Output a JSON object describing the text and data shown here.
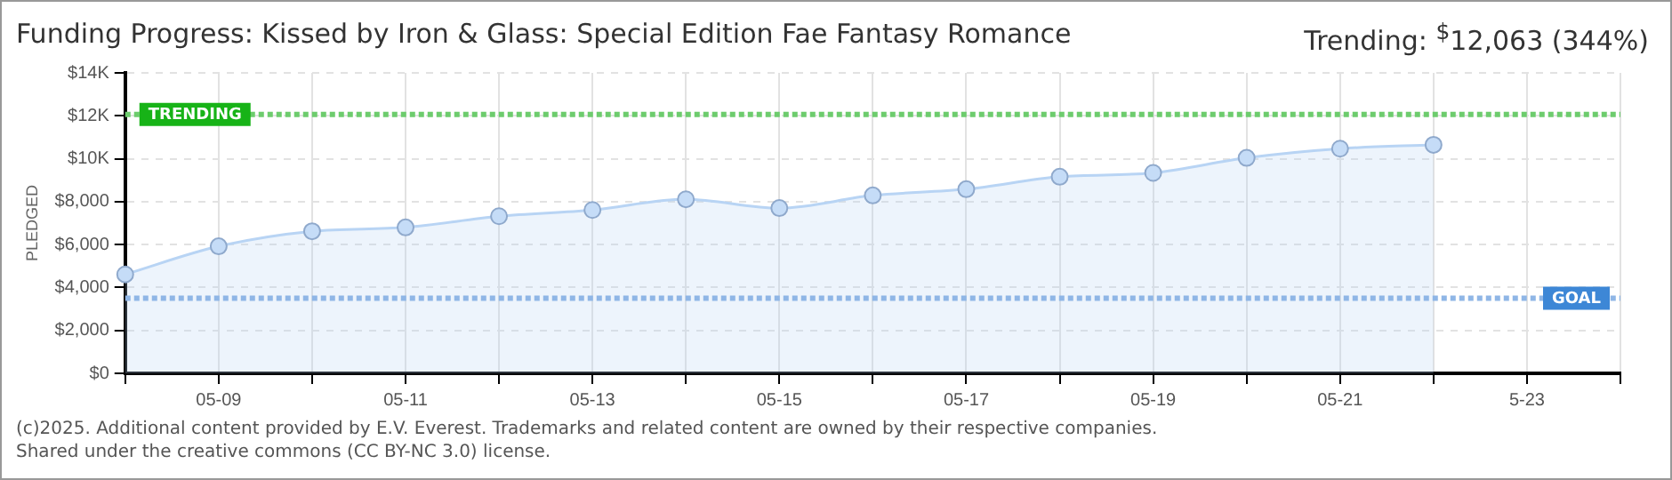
{
  "chart_data": {
    "type": "area",
    "title": "Funding Progress: Kissed by Iron & Glass: Special Edition Fae Fantasy Romance",
    "ylabel": "PLEDGED",
    "categories": [
      null,
      "05-09",
      null,
      "05-11",
      null,
      "05-13",
      null,
      "05-15",
      null,
      "05-17",
      null,
      "05-19",
      null,
      "05-21",
      null,
      "5-23",
      null
    ],
    "series": [
      {
        "color": "#b8d4f4",
        "values": [
          4610,
          5920,
          6620,
          6800,
          7320,
          7610,
          8110,
          7700,
          8290,
          8580,
          9160,
          9340,
          10040,
          10470,
          10650,
          null,
          null
        ]
      }
    ],
    "ylim": [
      0,
      14000
    ],
    "yticks": [
      {
        "value": 0,
        "label": "$0"
      },
      {
        "value": 2000,
        "label": "$2,000"
      },
      {
        "value": 4000,
        "label": "$4,000"
      },
      {
        "value": 6000,
        "label": "$6,000"
      },
      {
        "value": 8000,
        "label": "$8,000"
      },
      {
        "value": 10000,
        "label": "$10K"
      },
      {
        "value": 12000,
        "label": "$12K"
      },
      {
        "value": 14000,
        "label": "$14K"
      }
    ],
    "grid": true,
    "legend": false,
    "marker": "circle",
    "line_style": "solid",
    "ref_lines": [
      {
        "axis": "y",
        "value": 12063,
        "label": "TRENDING",
        "color": "#6dcc6d",
        "line_style": "dotted"
      },
      {
        "axis": "y",
        "value": 3500,
        "label": "GOAL",
        "color": "#8fb6e6",
        "line_style": "dotted"
      }
    ],
    "annotations": [
      "Trending: $^{$}$12,063 (344%)",
      "(c)2025. Additional content provided by E.V. Everest. Trademarks and related content are owned by their respective companies.",
      "Shared under the creative commons (CC BY-NC 3.0) license."
    ]
  }
}
